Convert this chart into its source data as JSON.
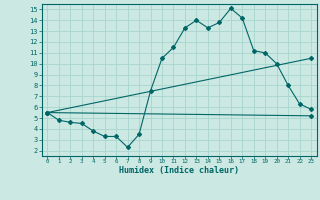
{
  "xlabel": "Humidex (Indice chaleur)",
  "bg_color": "#cbe8e3",
  "grid_color": "#a8d4ce",
  "line_color": "#006666",
  "xlim": [
    -0.5,
    23.5
  ],
  "ylim": [
    1.5,
    15.5
  ],
  "xticks": [
    0,
    1,
    2,
    3,
    4,
    5,
    6,
    7,
    8,
    9,
    10,
    11,
    12,
    13,
    14,
    15,
    16,
    17,
    18,
    19,
    20,
    21,
    22,
    23
  ],
  "yticks": [
    2,
    3,
    4,
    5,
    6,
    7,
    8,
    9,
    10,
    11,
    12,
    13,
    14,
    15
  ],
  "line1_x": [
    0,
    1,
    2,
    3,
    4,
    5,
    6,
    7,
    8,
    9,
    10,
    11,
    12,
    13,
    14,
    15,
    16,
    17,
    18,
    19,
    20,
    21,
    22,
    23
  ],
  "line1_y": [
    5.5,
    4.8,
    4.6,
    4.5,
    3.8,
    3.3,
    3.3,
    2.3,
    3.5,
    7.5,
    10.5,
    11.5,
    13.3,
    14.0,
    13.3,
    13.8,
    15.1,
    14.2,
    11.2,
    11.0,
    10.0,
    8.0,
    6.3,
    5.8
  ],
  "line2_x": [
    0,
    23
  ],
  "line2_y": [
    5.5,
    10.5
  ],
  "line3_x": [
    0,
    23
  ],
  "line3_y": [
    5.5,
    5.2
  ]
}
